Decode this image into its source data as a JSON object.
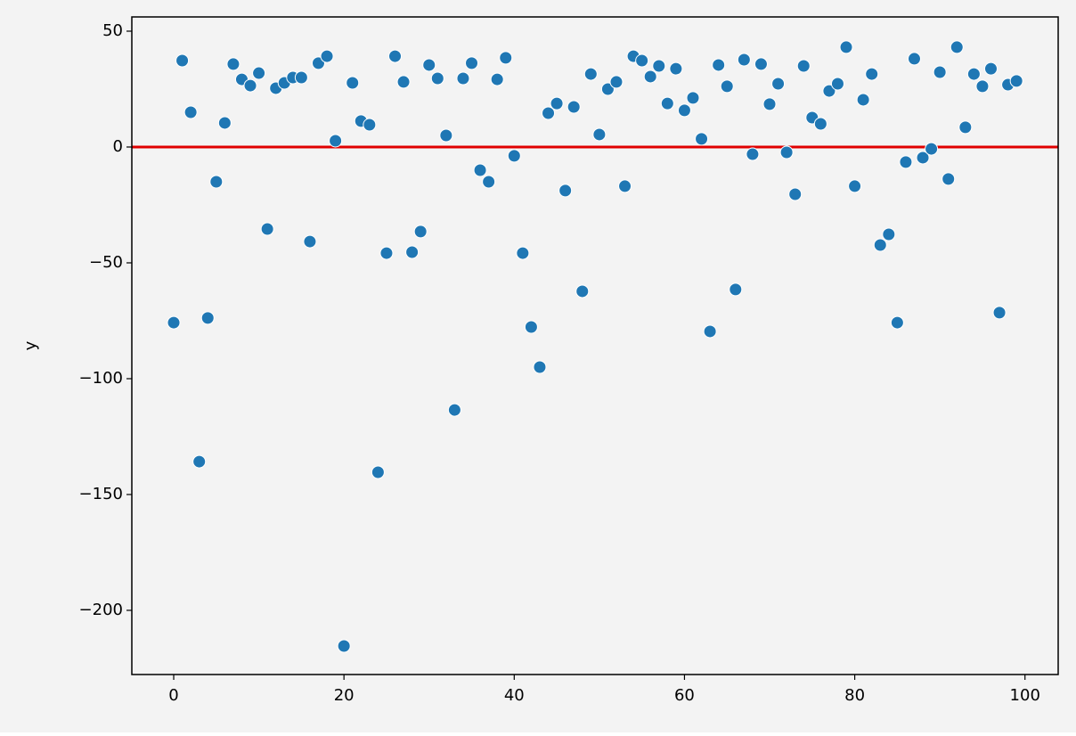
{
  "chart_data": {
    "type": "scatter",
    "y_label": "y",
    "color": "#1f77b4",
    "edgecolor": "#ffffff",
    "background": "#f3f3f3",
    "hline": {
      "y": 0,
      "color": "#e00000"
    },
    "x": [
      0,
      1,
      2,
      3,
      4,
      5,
      6,
      7,
      8,
      9,
      10,
      11,
      12,
      13,
      14,
      15,
      16,
      17,
      18,
      19,
      20,
      21,
      22,
      23,
      24,
      25,
      26,
      27,
      28,
      29,
      30,
      31,
      32,
      33,
      34,
      35,
      36,
      37,
      38,
      39,
      40,
      41,
      42,
      43,
      44,
      45,
      46,
      47,
      48,
      49,
      50,
      51,
      52,
      53,
      54,
      55,
      56,
      57,
      58,
      59,
      60,
      61,
      62,
      63,
      64,
      65,
      66,
      67,
      68,
      69,
      70,
      71,
      72,
      73,
      74,
      75,
      76,
      77,
      78,
      79,
      80,
      81,
      82,
      83,
      84,
      85,
      86,
      87,
      88,
      89,
      90,
      91,
      92,
      93,
      94,
      95,
      96,
      97,
      98,
      99
    ],
    "y": [
      -75.8,
      37.3,
      15,
      -135.8,
      -73.8,
      -15,
      10.4,
      35.8,
      29.2,
      26.5,
      31.9,
      -35.4,
      25.4,
      27.7,
      30,
      30,
      -40.8,
      36.2,
      39.2,
      2.7,
      -215.4,
      27.7,
      11.2,
      9.6,
      -140.4,
      -45.8,
      39.2,
      28.1,
      -45.4,
      -36.5,
      35.4,
      29.6,
      5,
      -113.5,
      29.6,
      36.2,
      -10,
      -15,
      29.2,
      38.5,
      -3.8,
      -45.8,
      -77.7,
      -95,
      14.6,
      18.8,
      -18.8,
      17.3,
      -62.3,
      31.5,
      5.4,
      25,
      28.1,
      -16.9,
      39.2,
      37.3,
      30.4,
      35,
      18.8,
      33.8,
      15.8,
      21.2,
      3.5,
      -79.6,
      35.4,
      26.2,
      -61.5,
      37.7,
      -3.1,
      35.8,
      18.5,
      27.3,
      -2.3,
      -20.4,
      35,
      12.7,
      10,
      24.2,
      27.3,
      43.1,
      -16.9,
      20.4,
      31.5,
      -42.3,
      -37.7,
      -75.8,
      -6.5,
      38.1,
      -4.6,
      -0.8,
      32.3,
      -13.8,
      43.1,
      8.5,
      31.5,
      26.2,
      33.8,
      -71.5,
      26.9,
      28.5
    ],
    "xlim": [
      -4.92,
      103.9
    ],
    "ylim": [
      -227.7,
      56.15
    ],
    "xticks": [
      0,
      20,
      40,
      60,
      80,
      100
    ],
    "yticks": [
      50,
      0,
      {
        "value": -50,
        "label": "−50"
      },
      {
        "value": -100,
        "label": "−100"
      },
      {
        "value": -150,
        "label": "−150"
      },
      {
        "value": -200,
        "label": "−200"
      }
    ]
  }
}
